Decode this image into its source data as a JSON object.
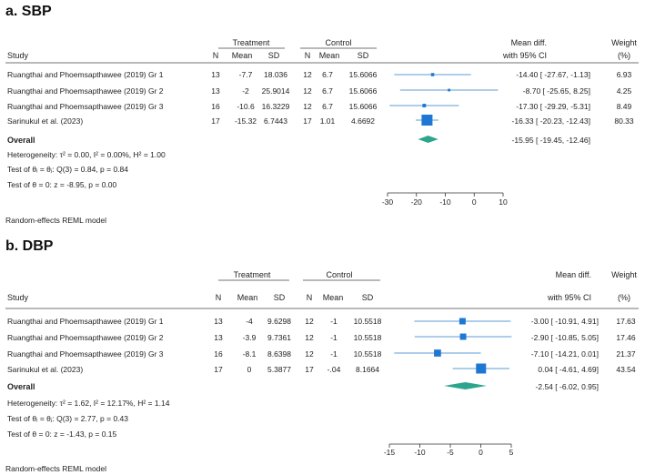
{
  "chart_data": [
    {
      "type": "forest",
      "panel_label": "a. SBP",
      "headers": {
        "study": "Study",
        "treatment": "Treatment",
        "control": "Control",
        "n": "N",
        "mean": "Mean",
        "sd": "SD",
        "effect1": "Mean diff.",
        "effect2": "with 95% CI",
        "weight1": "Weight",
        "weight2": "(%)"
      },
      "studies": [
        {
          "name": "Ruangthai and Phoemsapthawee (2019) Gr 1",
          "tn": "13",
          "tmean": "-7.7",
          "tsd": "18.036",
          "cn": "12",
          "cmean": "6.7",
          "csd": "15.6066",
          "md": -14.4,
          "lo": -27.67,
          "hi": -1.13,
          "ci_text": "-14.40 [ -27.67,   -1.13]",
          "weight": 6.93,
          "weight_text": "6.93"
        },
        {
          "name": "Ruangthai and Phoemsapthawee (2019) Gr 2",
          "tn": "13",
          "tmean": "-2",
          "tsd": "25.9014",
          "cn": "12",
          "cmean": "6.7",
          "csd": "15.6066",
          "md": -8.7,
          "lo": -25.65,
          "hi": 8.25,
          "ci_text": "-8.70 [ -25.65,    8.25]",
          "weight": 4.25,
          "weight_text": "4.25"
        },
        {
          "name": "Ruangthai and Phoemsapthawee (2019) Gr 3",
          "tn": "16",
          "tmean": "-10.6",
          "tsd": "16.3229",
          "cn": "12",
          "cmean": "6.7",
          "csd": "15.6066",
          "md": -17.3,
          "lo": -29.29,
          "hi": -5.31,
          "ci_text": "-17.30 [ -29.29,   -5.31]",
          "weight": 8.49,
          "weight_text": "8.49"
        },
        {
          "name": "Sarinukul et al. (2023)",
          "tn": "17",
          "tmean": "-15.32",
          "tsd": "6.7443",
          "cn": "17",
          "cmean": "1.01",
          "csd": "4.6692",
          "md": -16.33,
          "lo": -20.23,
          "hi": -12.43,
          "ci_text": "-16.33 [ -20.23,  -12.43]",
          "weight": 80.33,
          "weight_text": "80.33"
        }
      ],
      "overall": {
        "label": "Overall",
        "md": -15.95,
        "lo": -19.45,
        "hi": -12.46,
        "ci_text": "-15.95 [ -19.45,  -12.46]"
      },
      "stats": [
        "Heterogeneity: τ² = 0.00, I² = 0.00%, H² = 1.00",
        "Test of θᵢ = θⱼ: Q(3) = 0.84, p = 0.84",
        "Test of θ = 0: z = -8.95, p = 0.00"
      ],
      "xaxis": {
        "min": -30,
        "max": 10,
        "ticks": [
          -30,
          -20,
          -10,
          0,
          10
        ]
      },
      "model_note": "Random-effects REML model"
    },
    {
      "type": "forest",
      "panel_label": "b. DBP",
      "headers": {
        "study": "Study",
        "treatment": "Treatment",
        "control": "Control",
        "n": "N",
        "mean": "Mean",
        "sd": "SD",
        "effect1": "Mean diff.",
        "effect2": "with 95% CI",
        "weight1": "Weight",
        "weight2": "(%)"
      },
      "studies": [
        {
          "name": "Ruangthai and Phoemsapthawee (2019) Gr 1",
          "tn": "13",
          "tmean": "-4",
          "tsd": "9.6298",
          "cn": "12",
          "cmean": "-1",
          "csd": "10.5518",
          "md": -3.0,
          "lo": -10.91,
          "hi": 4.91,
          "ci_text": "-3.00 [ -10.91,  4.91]",
          "weight": 17.63,
          "weight_text": "17.63"
        },
        {
          "name": "Ruangthai and Phoemsapthawee (2019) Gr 2",
          "tn": "13",
          "tmean": "-3.9",
          "tsd": "9.7361",
          "cn": "12",
          "cmean": "-1",
          "csd": "10.5518",
          "md": -2.9,
          "lo": -10.85,
          "hi": 5.05,
          "ci_text": "-2.90 [ -10.85,  5.05]",
          "weight": 17.46,
          "weight_text": "17.46"
        },
        {
          "name": "Ruangthai and Phoemsapthawee (2019) Gr 3",
          "tn": "16",
          "tmean": "-8.1",
          "tsd": "8.6398",
          "cn": "12",
          "cmean": "-1",
          "csd": "10.5518",
          "md": -7.1,
          "lo": -14.21,
          "hi": 0.01,
          "ci_text": "-7.10 [ -14.21,  0.01]",
          "weight": 21.37,
          "weight_text": "21.37"
        },
        {
          "name": "Sarinukul et al. (2023)",
          "tn": "17",
          "tmean": "0",
          "tsd": "5.3877",
          "cn": "17",
          "cmean": "-.04",
          "csd": "8.1664",
          "md": 0.04,
          "lo": -4.61,
          "hi": 4.69,
          "ci_text": "0.04 [  -4.61,  4.69]",
          "weight": 43.54,
          "weight_text": "43.54"
        }
      ],
      "overall": {
        "label": "Overall",
        "md": -2.54,
        "lo": -6.02,
        "hi": 0.95,
        "ci_text": "-2.54 [  -6.02,  0.95]"
      },
      "stats": [
        "Heterogeneity: τ² = 1.62, I² = 12.17%, H² = 1.14",
        "Test of θᵢ = θⱼ: Q(3) = 2.77, p = 0.43",
        "Test of θ = 0: z = -1.43, p = 0.15"
      ],
      "xaxis": {
        "min": -15,
        "max": 5,
        "ticks": [
          -15,
          -10,
          -5,
          0,
          5
        ]
      },
      "model_note": "Random-effects REML model"
    }
  ],
  "colors": {
    "ci_line": "#5b9bd5",
    "marker": "#1f77d4",
    "diamond": "#2ca58d",
    "rule": "#444444",
    "axis": "#333333"
  }
}
